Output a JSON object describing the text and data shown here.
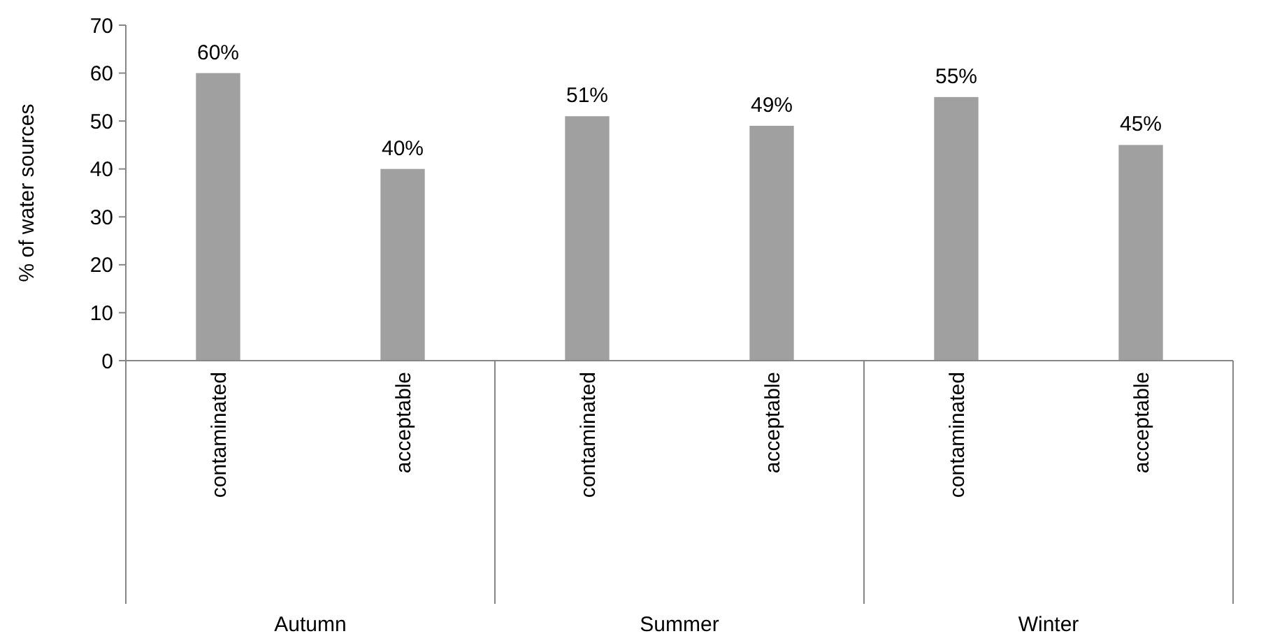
{
  "chart_data": {
    "type": "bar",
    "ylabel": "% of water sources",
    "categories": [
      "contaminated",
      "acceptable",
      "contaminated",
      "acceptable",
      "contaminated",
      "acceptable"
    ],
    "values": [
      60,
      40,
      51,
      49,
      55,
      45
    ],
    "color": "#a0a0a0",
    "value_labels": [
      "60%",
      "40%",
      "51%",
      "49%",
      "55%",
      "45%"
    ],
    "annotations": [
      "Autumn",
      "Summer",
      "Winter"
    ],
    "ylim": [
      0,
      70
    ],
    "yticks": [
      0,
      10,
      20,
      30,
      40,
      50,
      60,
      70
    ],
    "grid": false
  }
}
